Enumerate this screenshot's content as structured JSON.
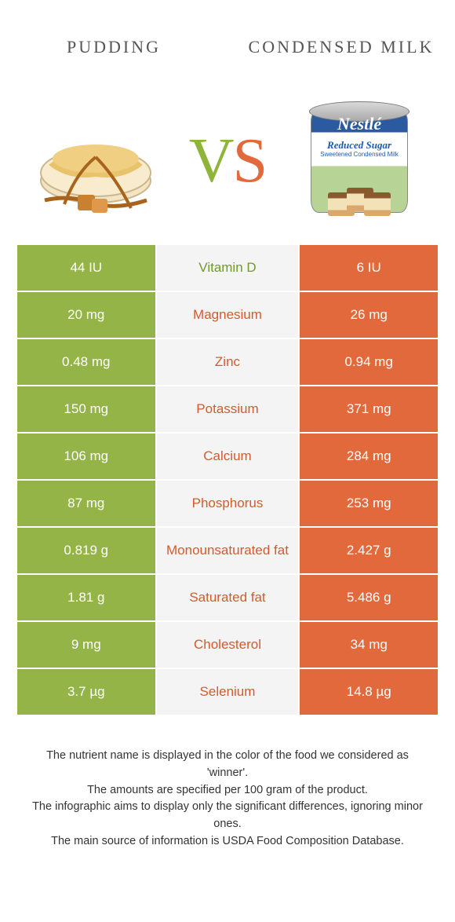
{
  "titles": {
    "left": "PUDDING",
    "right": "CONDENSED MILK"
  },
  "vs": {
    "v": "V",
    "s": "S"
  },
  "can": {
    "brand": "Nestlé",
    "line1": "Reduced Sugar",
    "line2": "Sweetened Condensed Milk"
  },
  "colors": {
    "left_bg": "#94b447",
    "right_bg": "#e2693b",
    "mid_bg": "#f4f4f4",
    "nutrient_left_winner": "#6f9a2e",
    "nutrient_right_winner": "#d45a2e"
  },
  "rows": [
    {
      "left": "44 IU",
      "nutrient": "Vitamin D",
      "right": "6 IU",
      "winner": "left"
    },
    {
      "left": "20 mg",
      "nutrient": "Magnesium",
      "right": "26 mg",
      "winner": "right"
    },
    {
      "left": "0.48 mg",
      "nutrient": "Zinc",
      "right": "0.94 mg",
      "winner": "right"
    },
    {
      "left": "150 mg",
      "nutrient": "Potassium",
      "right": "371 mg",
      "winner": "right"
    },
    {
      "left": "106 mg",
      "nutrient": "Calcium",
      "right": "284 mg",
      "winner": "right"
    },
    {
      "left": "87 mg",
      "nutrient": "Phosphorus",
      "right": "253 mg",
      "winner": "right"
    },
    {
      "left": "0.819 g",
      "nutrient": "Monounsaturated fat",
      "right": "2.427 g",
      "winner": "right"
    },
    {
      "left": "1.81 g",
      "nutrient": "Saturated fat",
      "right": "5.486 g",
      "winner": "right"
    },
    {
      "left": "9 mg",
      "nutrient": "Cholesterol",
      "right": "34 mg",
      "winner": "right"
    },
    {
      "left": "3.7 µg",
      "nutrient": "Selenium",
      "right": "14.8 µg",
      "winner": "right"
    }
  ],
  "footer": [
    "The nutrient name is displayed in the color of the food we considered as 'winner'.",
    "The amounts are specified per 100 gram of the product.",
    "The infographic aims to display only the significant differences, ignoring minor ones.",
    "The main source of information is USDA Food Composition Database."
  ]
}
